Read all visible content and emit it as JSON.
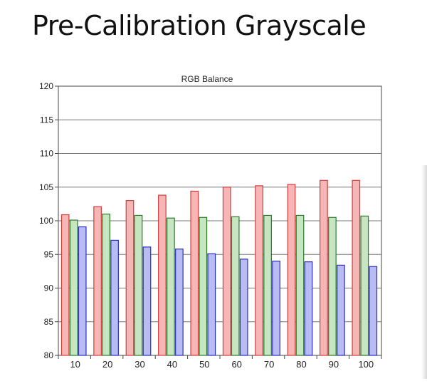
{
  "page": {
    "title": "Pre-Calibration Grayscale"
  },
  "chart_data": {
    "type": "bar",
    "title": "RGB Balance",
    "xlabel": "",
    "ylabel": "",
    "categories": [
      "10",
      "20",
      "30",
      "40",
      "50",
      "60",
      "70",
      "80",
      "90",
      "100"
    ],
    "ylim": [
      80,
      120
    ],
    "yticks": [
      80,
      85,
      90,
      95,
      100,
      105,
      110,
      115,
      120
    ],
    "grid": "horizontal",
    "legend": "none",
    "series": [
      {
        "values": [
          100.9,
          102.1,
          103.0,
          103.8,
          104.4,
          105.0,
          105.2,
          105.4,
          106.0,
          106.0
        ],
        "color": "#f6b6b6",
        "edge": "#d43c3c"
      },
      {
        "values": [
          100.1,
          101.0,
          100.8,
          100.4,
          100.5,
          100.6,
          100.8,
          100.8,
          100.5,
          100.7
        ],
        "color": "#c6e6c2",
        "edge": "#2d7a2d"
      },
      {
        "values": [
          99.1,
          97.1,
          96.1,
          95.8,
          95.1,
          94.3,
          94.0,
          93.9,
          93.4,
          93.2
        ],
        "color": "#b8bcf2",
        "edge": "#2b2fc8"
      }
    ]
  }
}
